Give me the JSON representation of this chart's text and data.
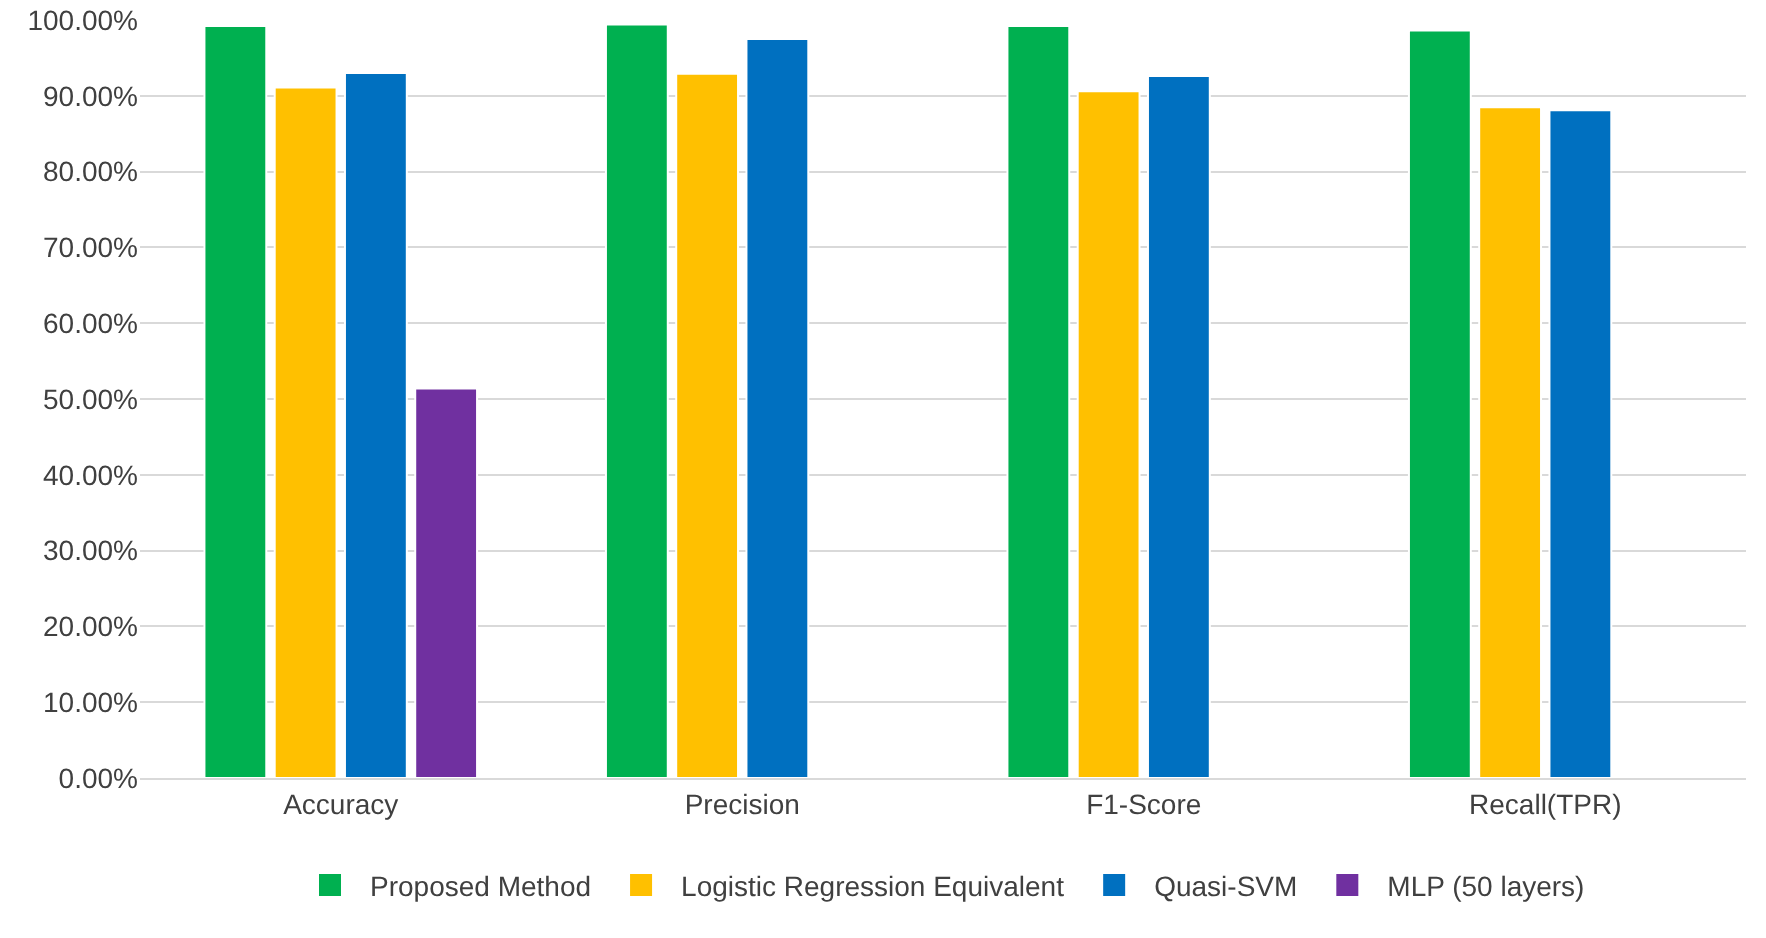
{
  "chart_data": {
    "type": "bar",
    "categories": [
      "Accuracy",
      "Precision",
      "F1-Score",
      "Recall(TPR)"
    ],
    "series": [
      {
        "name": "Proposed Method",
        "color": "#00b050",
        "values": [
          99.2,
          99.4,
          99.2,
          98.6
        ]
      },
      {
        "name": "Logistic Regression Equivalent",
        "color": "#ffc000",
        "values": [
          91.1,
          92.9,
          90.6,
          88.5
        ]
      },
      {
        "name": "Quasi-SVM",
        "color": "#0070c0",
        "values": [
          93.0,
          97.5,
          92.6,
          88.1
        ]
      },
      {
        "name": "MLP (50 layers)",
        "color": "#7030a0",
        "values": [
          51.4,
          null,
          null,
          null
        ]
      }
    ],
    "ylim": [
      0,
      100
    ],
    "yticks": [
      {
        "value": 0,
        "label": "0.00%"
      },
      {
        "value": 10,
        "label": "10.00%"
      },
      {
        "value": 20,
        "label": "20.00%"
      },
      {
        "value": 30,
        "label": "30.00%"
      },
      {
        "value": 40,
        "label": "40.00%"
      },
      {
        "value": 50,
        "label": "50.00%"
      },
      {
        "value": 60,
        "label": "60.00%"
      },
      {
        "value": 70,
        "label": "70.00%"
      },
      {
        "value": 80,
        "label": "80.00%"
      },
      {
        "value": 90,
        "label": "90.00%"
      },
      {
        "value": 100,
        "label": "100.00%"
      }
    ],
    "grid": "y",
    "legend": "bottom"
  }
}
